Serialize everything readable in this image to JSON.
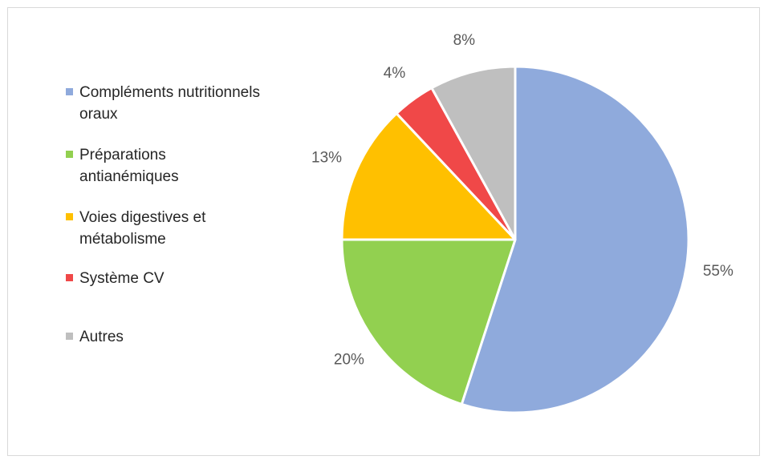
{
  "chart_data": {
    "type": "pie",
    "slices": [
      {
        "label": "Compléments nutritionnels oraux",
        "value": 55,
        "display": "55%",
        "color": "#8faadc"
      },
      {
        "label": "Préparations antianémiques",
        "value": 20,
        "display": "20%",
        "color": "#92d050"
      },
      {
        "label": "Voies digestives et métabolisme",
        "value": 13,
        "display": "13%",
        "color": "#ffc000"
      },
      {
        "label": "Système CV",
        "value": 4,
        "display": "4%",
        "color": "#f04848"
      },
      {
        "label": "Autres",
        "value": 8,
        "display": "8%",
        "color": "#bfbfbf"
      }
    ],
    "legend_position": "left",
    "start_angle": "12 o'clock",
    "direction": "clockwise"
  }
}
